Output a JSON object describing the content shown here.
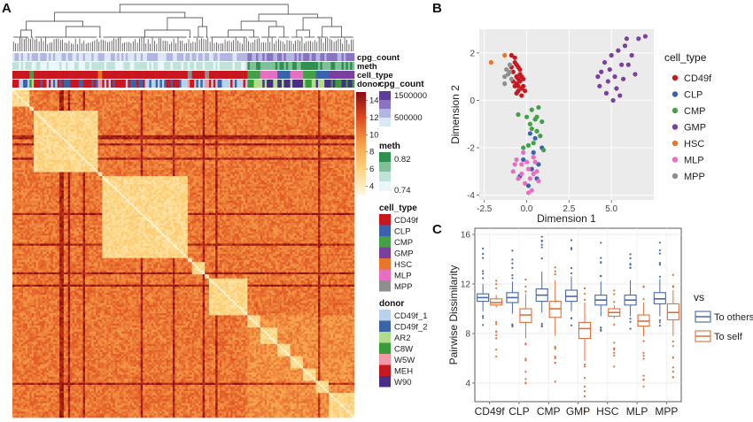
{
  "chart_data": [
    {
      "panel": "A",
      "type": "heatmap",
      "annotation_tracks": [
        "cpg_count",
        "meth",
        "cell_type",
        "donor"
      ],
      "colorbar": {
        "ticks": [
          4,
          6,
          8,
          10,
          12,
          14
        ],
        "range": [
          3,
          15
        ],
        "colors": [
          "#fff7dc",
          "#fdd27a",
          "#f6a04a",
          "#de4a1e",
          "#8b0c12"
        ]
      },
      "legends": {
        "cpg_count": {
          "title": "cpg_count",
          "labels": [
            "1500000",
            "500000"
          ],
          "colors": [
            "#5e3c99",
            "#8a73c0",
            "#b3b6e0",
            "#dde8f5"
          ]
        },
        "meth": {
          "title": "meth",
          "labels": [
            "0.82",
            "0.74"
          ],
          "colors": [
            "#2f8f4e",
            "#7fc09a",
            "#bfe3d9",
            "#eaf6fa"
          ]
        },
        "cell_type": {
          "title": "cell_type",
          "items": [
            {
              "label": "CD49f",
              "color": "#c8171e"
            },
            {
              "label": "CLP",
              "color": "#3b62ad"
            },
            {
              "label": "CMP",
              "color": "#43a047"
            },
            {
              "label": "GMP",
              "color": "#7b3f9e"
            },
            {
              "label": "HSC",
              "color": "#e8752b"
            },
            {
              "label": "MLP",
              "color": "#e66fc1"
            },
            {
              "label": "MPP",
              "color": "#8f8f8f"
            }
          ]
        },
        "donor": {
          "title": "donor",
          "items": [
            {
              "label": "CD49f_1",
              "color": "#b9d2ea"
            },
            {
              "label": "CD49f_2",
              "color": "#3a63a8"
            },
            {
              "label": "AR2",
              "color": "#b0dd8a"
            },
            {
              "label": "C8W",
              "color": "#3b9a3a"
            },
            {
              "label": "W5W",
              "color": "#f19aa6"
            },
            {
              "label": "MEH",
              "color": "#c8171e"
            },
            {
              "label": "W90",
              "color": "#4a2d86"
            }
          ]
        }
      },
      "cluster_order": [
        "CD49f",
        "CMP",
        "CD49f",
        "HSC",
        "CD49f",
        "MPP",
        "CD49f",
        "MPP",
        "CD49f",
        "CMP",
        "MLP",
        "CLP",
        "MLP",
        "CMP",
        "CLP",
        "GMP"
      ],
      "cluster_sizes": [
        8,
        2,
        30,
        2,
        40,
        2,
        6,
        2,
        18,
        6,
        8,
        6,
        6,
        6,
        6,
        12
      ]
    },
    {
      "panel": "B",
      "type": "scatter",
      "xlabel": "Dimension 1",
      "ylabel": "Dimension 2",
      "xlim": [
        -2.8,
        7.5
      ],
      "ylim": [
        -4.2,
        3.0
      ],
      "xticks": [
        -2.5,
        0.0,
        2.5,
        5.0
      ],
      "xtick_labels": [
        "-2.5",
        "0.0",
        "2.5",
        "5.0"
      ],
      "yticks": [
        -4,
        -2,
        0,
        2
      ],
      "legend_title": "cell_type",
      "series": [
        {
          "name": "CD49f",
          "color": "#c8171e",
          "points": [
            [
              -0.9,
              1.9
            ],
            [
              -0.7,
              1.6
            ],
            [
              -0.5,
              1.4
            ],
            [
              -0.8,
              1.2
            ],
            [
              -0.6,
              1.0
            ],
            [
              -0.4,
              0.8
            ],
            [
              -0.7,
              0.6
            ],
            [
              -0.5,
              0.4
            ],
            [
              -0.3,
              0.2
            ],
            [
              -0.6,
              1.5
            ],
            [
              -0.4,
              1.1
            ],
            [
              -0.2,
              0.9
            ],
            [
              -0.8,
              0.8
            ],
            [
              -0.5,
              0.6
            ],
            [
              -0.3,
              0.5
            ],
            [
              -0.6,
              0.3
            ],
            [
              -0.9,
              1.4
            ],
            [
              -0.4,
              1.3
            ],
            [
              -0.2,
              0.6
            ],
            [
              -0.7,
              1.8
            ],
            [
              -0.5,
              0.9
            ],
            [
              -0.3,
              1.0
            ],
            [
              -0.1,
              0.4
            ],
            [
              -0.6,
              0.7
            ]
          ]
        },
        {
          "name": "CLP",
          "color": "#3b62ad",
          "points": [
            [
              0.2,
              -1.4
            ],
            [
              0.5,
              -1.6
            ],
            [
              -0.2,
              -2.5
            ],
            [
              0.3,
              -2.9
            ],
            [
              0.6,
              -3.3
            ],
            [
              0.1,
              -3.6
            ],
            [
              0.9,
              -2.0
            ],
            [
              -0.4,
              -3.2
            ],
            [
              0.4,
              -2.2
            ],
            [
              0.7,
              -2.7
            ]
          ]
        },
        {
          "name": "CMP",
          "color": "#43a047",
          "points": [
            [
              -0.5,
              -0.6
            ],
            [
              0.3,
              -0.4
            ],
            [
              0.7,
              -0.3
            ],
            [
              0.5,
              -0.8
            ],
            [
              0.2,
              -1.0
            ],
            [
              0.9,
              -0.9
            ],
            [
              0.6,
              -1.3
            ],
            [
              0.4,
              -1.8
            ],
            [
              0.8,
              -1.5
            ],
            [
              0.1,
              -1.9
            ],
            [
              1.0,
              -2.1
            ],
            [
              -0.2,
              -2.0
            ],
            [
              0.3,
              -1.2
            ],
            [
              0.6,
              -0.7
            ],
            [
              0.0,
              -0.7
            ]
          ]
        },
        {
          "name": "GMP",
          "color": "#7b3f9e",
          "points": [
            [
              4.6,
              1.6
            ],
            [
              5.0,
              1.9
            ],
            [
              5.4,
              2.1
            ],
            [
              5.8,
              2.3
            ],
            [
              6.2,
              1.9
            ],
            [
              4.4,
              1.2
            ],
            [
              4.9,
              1.3
            ],
            [
              5.2,
              1.0
            ],
            [
              5.6,
              1.5
            ],
            [
              6.0,
              1.5
            ],
            [
              4.3,
              0.6
            ],
            [
              4.8,
              0.8
            ],
            [
              5.3,
              0.5
            ],
            [
              5.7,
              0.9
            ],
            [
              6.4,
              1.1
            ],
            [
              4.7,
              0.3
            ],
            [
              5.1,
              0.0
            ],
            [
              5.5,
              0.2
            ],
            [
              6.6,
              2.6
            ],
            [
              7.0,
              2.7
            ],
            [
              4.2,
              1.0
            ],
            [
              5.9,
              2.6
            ]
          ]
        },
        {
          "name": "HSC",
          "color": "#e8752b",
          "points": [
            [
              -2.1,
              1.6
            ],
            [
              -1.3,
              1.9
            ]
          ]
        },
        {
          "name": "MLP",
          "color": "#e66fc1",
          "points": [
            [
              -0.6,
              -2.5
            ],
            [
              -0.3,
              -2.7
            ],
            [
              0.1,
              -2.9
            ],
            [
              0.4,
              -3.1
            ],
            [
              -0.5,
              -3.3
            ],
            [
              -0.1,
              -3.5
            ],
            [
              0.3,
              -3.8
            ],
            [
              0.7,
              -3.4
            ],
            [
              -0.8,
              -3.0
            ],
            [
              0.0,
              -2.6
            ],
            [
              0.5,
              -2.6
            ],
            [
              -0.3,
              -3.1
            ],
            [
              0.2,
              -3.3
            ],
            [
              0.6,
              -3.0
            ],
            [
              -0.7,
              -2.7
            ],
            [
              0.1,
              -3.9
            ],
            [
              0.4,
              -2.4
            ],
            [
              -0.2,
              -2.2
            ]
          ]
        },
        {
          "name": "MPP",
          "color": "#8f8f8f",
          "points": [
            [
              -1.2,
              1.3
            ],
            [
              -1.0,
              1.5
            ],
            [
              -1.3,
              1.0
            ],
            [
              -1.1,
              1.1
            ],
            [
              -0.9,
              0.9
            ],
            [
              -1.3,
              0.7
            ],
            [
              -1.0,
              1.2
            ]
          ]
        }
      ]
    },
    {
      "panel": "C",
      "type": "boxplot",
      "ylabel": "Pairwise Dissimilarity",
      "ylim": [
        2.5,
        16.5
      ],
      "yticks": [
        4,
        8,
        12,
        16
      ],
      "categories": [
        "CD49f",
        "CLP",
        "CMP",
        "GMP",
        "HSC",
        "MLP",
        "MPP"
      ],
      "legend_title": "vs",
      "series": [
        {
          "name": "To others",
          "color": "#4a67aa",
          "boxes": [
            {
              "q1": 10.6,
              "median": 10.9,
              "q3": 11.2,
              "lo": 9.8,
              "hi": 12.0
            },
            {
              "q1": 10.5,
              "median": 10.9,
              "q3": 11.3,
              "lo": 9.6,
              "hi": 12.2
            },
            {
              "q1": 10.6,
              "median": 11.1,
              "q3": 11.6,
              "lo": 9.7,
              "hi": 13.0
            },
            {
              "q1": 10.6,
              "median": 11.0,
              "q3": 11.5,
              "lo": 9.8,
              "hi": 12.6
            },
            {
              "q1": 10.3,
              "median": 10.7,
              "q3": 11.1,
              "lo": 9.4,
              "hi": 12.2
            },
            {
              "q1": 10.3,
              "median": 10.7,
              "q3": 11.1,
              "lo": 9.4,
              "hi": 12.3
            },
            {
              "q1": 10.4,
              "median": 10.8,
              "q3": 11.3,
              "lo": 9.4,
              "hi": 12.4
            }
          ]
        },
        {
          "name": "To self",
          "color": "#e0703a",
          "boxes": [
            {
              "q1": 10.3,
              "median": 10.5,
              "q3": 10.8,
              "lo": 10.1,
              "hi": 11.1
            },
            {
              "q1": 8.9,
              "median": 9.5,
              "q3": 10.0,
              "lo": 7.6,
              "hi": 11.2
            },
            {
              "q1": 9.3,
              "median": 10.0,
              "q3": 10.6,
              "lo": 7.8,
              "hi": 12.3
            },
            {
              "q1": 7.6,
              "median": 8.4,
              "q3": 8.9,
              "lo": 5.8,
              "hi": 10.5
            },
            {
              "q1": 9.4,
              "median": 9.7,
              "q3": 10.0,
              "lo": 9.2,
              "hi": 10.3
            },
            {
              "q1": 8.6,
              "median": 9.0,
              "q3": 9.5,
              "lo": 7.8,
              "hi": 10.5
            },
            {
              "q1": 9.1,
              "median": 9.7,
              "q3": 10.4,
              "lo": 7.8,
              "hi": 11.5
            }
          ]
        }
      ]
    }
  ]
}
